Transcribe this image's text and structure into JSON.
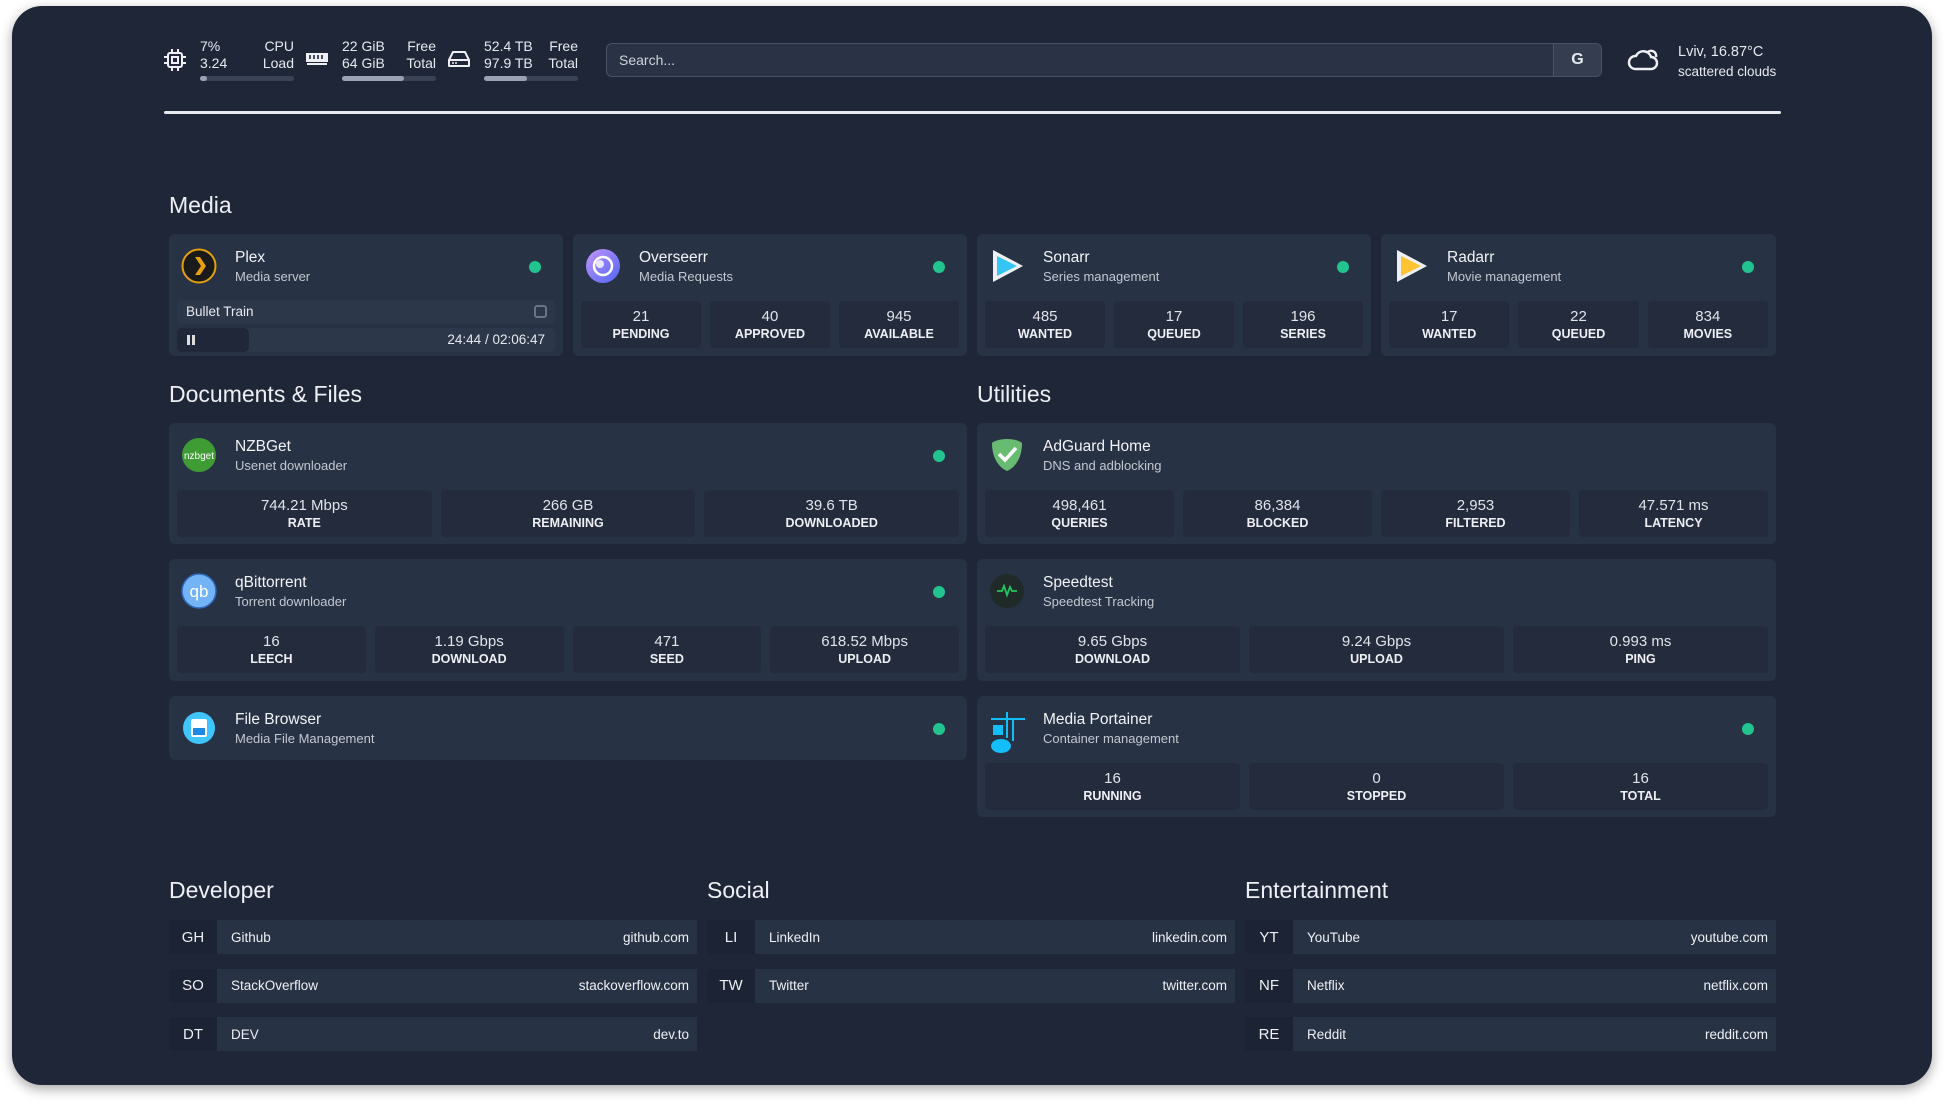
{
  "resources": {
    "cpu": {
      "value1": "7%",
      "value2": "3.24",
      "label1": "CPU",
      "label2": "Load",
      "usage_percent": 7
    },
    "memory": {
      "value1": "22 GiB",
      "value2": "64 GiB",
      "label1": "Free",
      "label2": "Total",
      "usage_percent": 66
    },
    "disk": {
      "value1": "52.4 TB",
      "value2": "97.9 TB",
      "label1": "Free",
      "label2": "Total",
      "usage_percent": 46
    }
  },
  "search": {
    "placeholder": "Search...",
    "button": "G"
  },
  "weather": {
    "location": "Lviv, 16.87°C",
    "condition": "scattered clouds"
  },
  "sections": {
    "media": "Media",
    "documents": "Documents & Files",
    "utilities": "Utilities",
    "developer": "Developer",
    "social": "Social",
    "entertainment": "Entertainment"
  },
  "colors": {
    "status_online": "#22c38e",
    "background": "#1f2638",
    "card": "#283245"
  },
  "services": {
    "plex": {
      "title": "Plex",
      "subtitle": "Media server",
      "icon": "plex-icon",
      "now_playing": "Bullet Train",
      "time": "24:44 / 02:06:47",
      "progress_percent": 19
    },
    "overseerr": {
      "title": "Overseerr",
      "subtitle": "Media Requests",
      "icon": "overseerr-icon",
      "stats": [
        {
          "value": "21",
          "label": "PENDING"
        },
        {
          "value": "40",
          "label": "APPROVED"
        },
        {
          "value": "945",
          "label": "AVAILABLE"
        }
      ]
    },
    "sonarr": {
      "title": "Sonarr",
      "subtitle": "Series management",
      "icon": "sonarr-icon",
      "stats": [
        {
          "value": "485",
          "label": "WANTED"
        },
        {
          "value": "17",
          "label": "QUEUED"
        },
        {
          "value": "196",
          "label": "SERIES"
        }
      ]
    },
    "radarr": {
      "title": "Radarr",
      "subtitle": "Movie management",
      "icon": "radarr-icon",
      "stats": [
        {
          "value": "17",
          "label": "WANTED"
        },
        {
          "value": "22",
          "label": "QUEUED"
        },
        {
          "value": "834",
          "label": "MOVIES"
        }
      ]
    },
    "nzbget": {
      "title": "NZBGet",
      "subtitle": "Usenet downloader",
      "icon": "nzbget-icon",
      "logo_text": "nzbget",
      "stats": [
        {
          "value": "744.21 Mbps",
          "label": "RATE"
        },
        {
          "value": "266 GB",
          "label": "REMAINING"
        },
        {
          "value": "39.6 TB",
          "label": "DOWNLOADED"
        }
      ]
    },
    "qbittorrent": {
      "title": "qBittorrent",
      "subtitle": "Torrent downloader",
      "icon": "qbittorrent-icon",
      "logo_text": "qb",
      "stats": [
        {
          "value": "16",
          "label": "LEECH"
        },
        {
          "value": "1.19 Gbps",
          "label": "DOWNLOAD"
        },
        {
          "value": "471",
          "label": "SEED"
        },
        {
          "value": "618.52 Mbps",
          "label": "UPLOAD"
        }
      ]
    },
    "filebrowser": {
      "title": "File Browser",
      "subtitle": "Media File Management",
      "icon": "file-browser-icon"
    },
    "adguard": {
      "title": "AdGuard Home",
      "subtitle": "DNS and adblocking",
      "icon": "adguard-icon",
      "stats": [
        {
          "value": "498,461",
          "label": "QUERIES"
        },
        {
          "value": "86,384",
          "label": "BLOCKED"
        },
        {
          "value": "2,953",
          "label": "FILTERED"
        },
        {
          "value": "47.571 ms",
          "label": "LATENCY"
        }
      ]
    },
    "speedtest": {
      "title": "Speedtest",
      "subtitle": "Speedtest Tracking",
      "icon": "speedtest-icon",
      "stats": [
        {
          "value": "9.65 Gbps",
          "label": "DOWNLOAD"
        },
        {
          "value": "9.24 Gbps",
          "label": "UPLOAD"
        },
        {
          "value": "0.993 ms",
          "label": "PING"
        }
      ]
    },
    "portainer": {
      "title": "Media Portainer",
      "subtitle": "Container management",
      "icon": "portainer-icon",
      "stats": [
        {
          "value": "16",
          "label": "RUNNING"
        },
        {
          "value": "0",
          "label": "STOPPED"
        },
        {
          "value": "16",
          "label": "TOTAL"
        }
      ]
    }
  },
  "bookmarks": {
    "developer": [
      {
        "abbr": "GH",
        "name": "Github",
        "url": "github.com"
      },
      {
        "abbr": "SO",
        "name": "StackOverflow",
        "url": "stackoverflow.com"
      },
      {
        "abbr": "DT",
        "name": "DEV",
        "url": "dev.to"
      }
    ],
    "social": [
      {
        "abbr": "LI",
        "name": "LinkedIn",
        "url": "linkedin.com"
      },
      {
        "abbr": "TW",
        "name": "Twitter",
        "url": "twitter.com"
      }
    ],
    "entertainment": [
      {
        "abbr": "YT",
        "name": "YouTube",
        "url": "youtube.com"
      },
      {
        "abbr": "NF",
        "name": "Netflix",
        "url": "netflix.com"
      },
      {
        "abbr": "RE",
        "name": "Reddit",
        "url": "reddit.com"
      }
    ]
  }
}
